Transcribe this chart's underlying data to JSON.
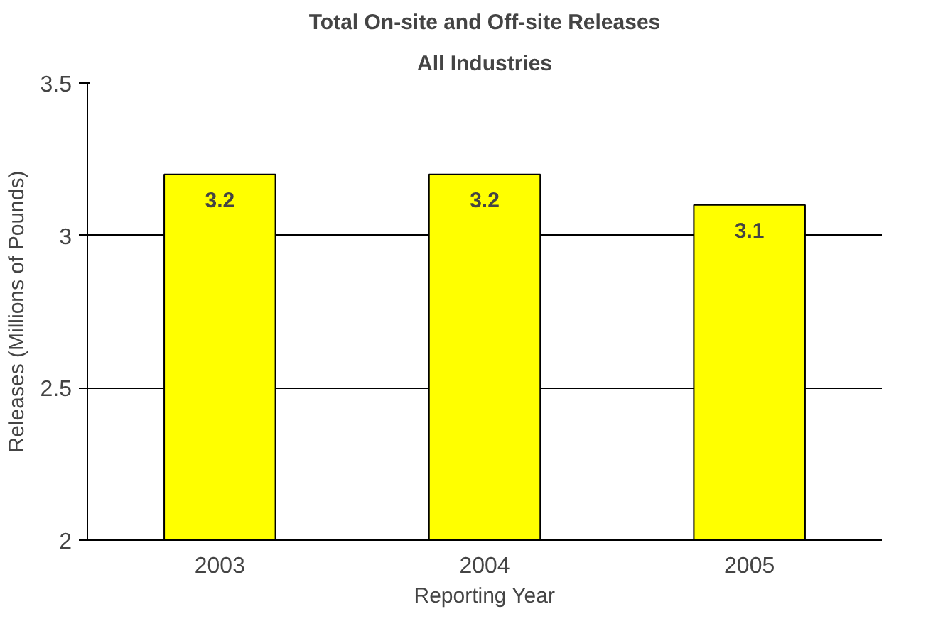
{
  "chart_data": {
    "type": "bar",
    "title": "Total On-site and Off-site Releases",
    "subtitle": "All Industries",
    "xlabel": "Reporting Year",
    "ylabel": "Releases (Millions of Pounds)",
    "categories": [
      "2003",
      "2004",
      "2005"
    ],
    "values": [
      3.2,
      3.2,
      3.1
    ],
    "color": "#ffff00",
    "ylim": [
      2,
      3.5
    ],
    "yticks": [
      2,
      2.5,
      3,
      3.5
    ],
    "grid": "y",
    "data_labels": true
  }
}
